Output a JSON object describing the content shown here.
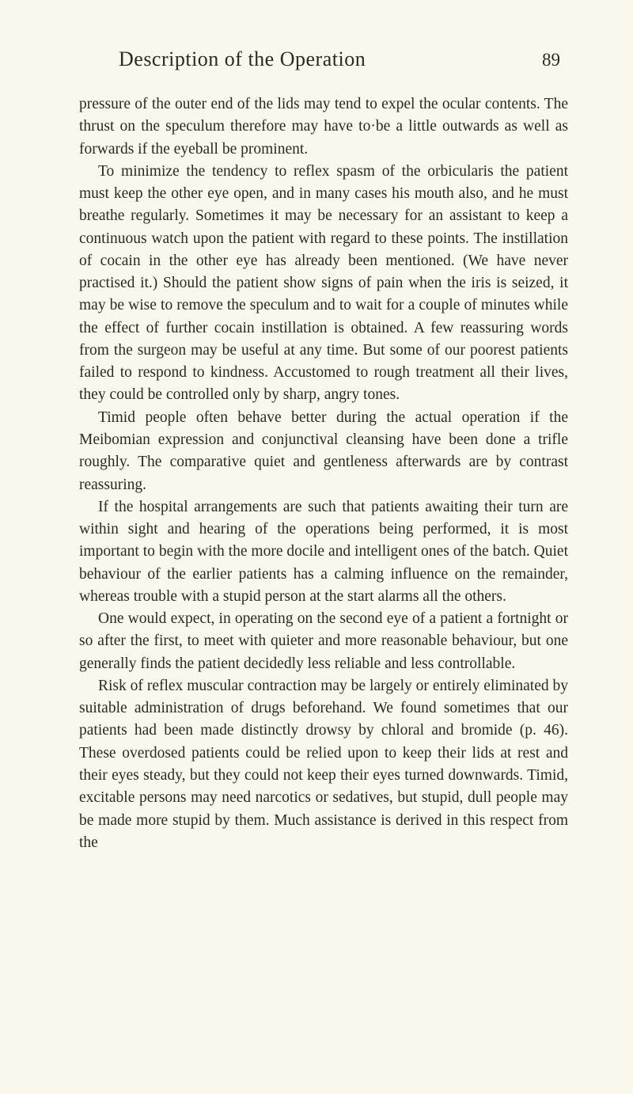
{
  "header": {
    "running_title": "Description of the Operation",
    "page_number": "89"
  },
  "body": {
    "paragraphs": [
      "pressure of the outer end of the lids may tend to expel the ocular contents. The thrust on the speculum therefore may have to·be a little outwards as well as forwards if the eyeball be prominent.",
      "To minimize the tendency to reflex spasm of the orbicularis the patient must keep the other eye open, and in many cases his mouth also, and he must breathe regularly. Some­times it may be necessary for an assistant to keep a continuous watch upon the patient with regard to these points. The instillation of cocain in the other eye has already been men­tioned. (We have never practised it.) Should the patient show signs of pain when the iris is seized, it may be wise to remove the speculum and to wait for a couple of minutes while the effect of further cocain instillation is obtained. A few reassur­ing words from the surgeon may be useful at any time. But some of our poorest patients failed to respond to kindness. Accustomed to rough treatment all their lives, they could be controlled only by sharp, angry tones.",
      "Timid people often behave better during the actual operation if the Meibomian expression and conjunctival cleansing have been done a trifle roughly. The comparative quiet and gentle­ness afterwards are by contrast reassuring.",
      "If the hospital arrangements are such that patients awaiting their turn are within sight and hearing of the operations being performed, it is most important to begin with the more docile and intelligent ones of the batch. Quiet behaviour of the earlier patients has a calming influence on the remainder, whereas trouble with a stupid person at the start alarms all the others.",
      "One would expect, in operating on the second eye of a patient a fortnight or so after the first, to meet with quieter and more reasonable behaviour, but one generally finds the patient decidedly less reliable and less controllable.",
      "Risk of reflex muscular contraction may be largely or entirely eliminated by suitable administration of drugs beforehand. We found sometimes that our patients had been made distinctly drowsy by chloral and bromide (p. 46). These overdosed patients could be relied upon to keep their lids at rest and their eyes steady, but they could not keep their eyes turned downwards. Timid, excitable persons may need narcotics or sedatives, but stupid, dull people may be made more stupid by them. Much assistance is derived in this respect from the"
    ]
  },
  "style": {
    "background_color": "#faf8ec",
    "text_color": "#2a2a1f",
    "body_font_size": 19.5,
    "title_font_size": 26,
    "page_num_font_size": 23,
    "line_height": 1.45
  }
}
